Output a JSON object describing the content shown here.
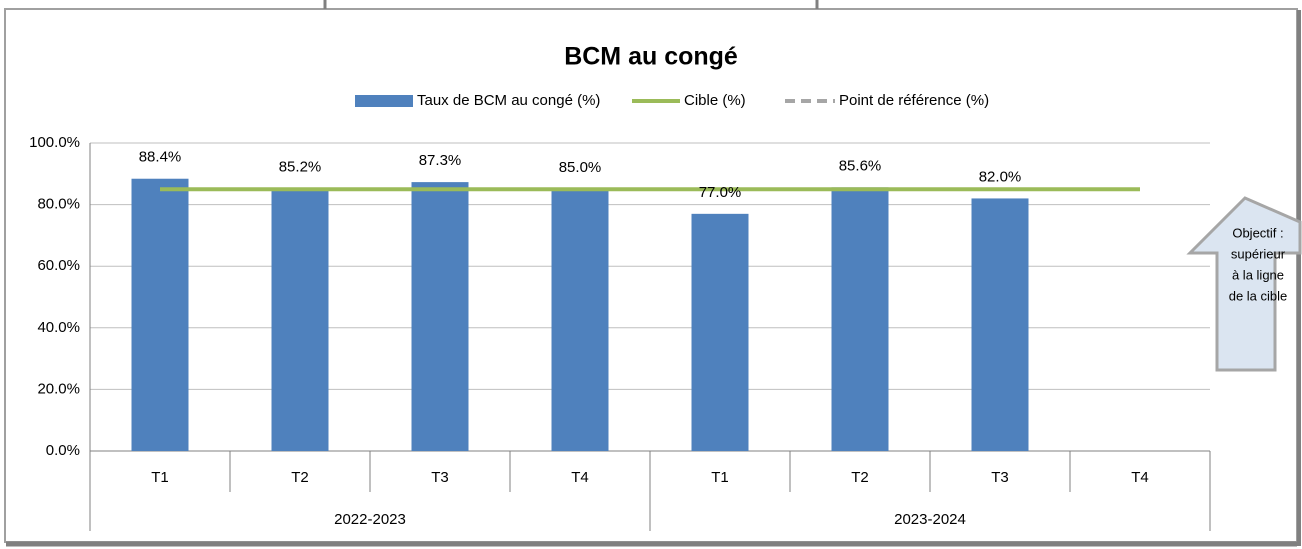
{
  "chart_data": {
    "type": "bar",
    "title": "BCM au congé",
    "categories": [
      "T1",
      "T2",
      "T3",
      "T4",
      "T1",
      "T2",
      "T3",
      "T4"
    ],
    "groups": [
      {
        "label": "2022-2023",
        "span": 4
      },
      {
        "label": "2023-2024",
        "span": 4
      }
    ],
    "series": [
      {
        "name": "Taux de BCM au congé (%)",
        "color": "#4f81bd",
        "kind": "bar",
        "values": [
          88.4,
          85.2,
          87.3,
          85.0,
          77.0,
          85.6,
          82.0,
          null
        ],
        "value_labels": [
          "88.4%",
          "85.2%",
          "87.3%",
          "85.0%",
          "77.0%",
          "85.6%",
          "82.0%",
          null
        ]
      },
      {
        "name": "Cible (%)",
        "color": "#9bbb59",
        "kind": "line",
        "values": [
          85,
          85,
          85,
          85,
          85,
          85,
          85,
          85
        ]
      },
      {
        "name": "Point de référence (%)",
        "color": "#a6a6a6",
        "kind": "dashed",
        "values": [
          null,
          null,
          null,
          null,
          null,
          null,
          null,
          null
        ]
      }
    ],
    "ylim": [
      0,
      100
    ],
    "yticks": [
      {
        "value": 0,
        "label": "0.0%"
      },
      {
        "value": 20,
        "label": "20.0%"
      },
      {
        "value": 40,
        "label": "40.0%"
      },
      {
        "value": 60,
        "label": "60.0%"
      },
      {
        "value": 80,
        "label": "80.0%"
      },
      {
        "value": 100,
        "label": "100.0%"
      }
    ],
    "grid": true,
    "annotation": [
      "Objectif :",
      "supérieur",
      "à la ligne",
      "de la cible"
    ]
  }
}
